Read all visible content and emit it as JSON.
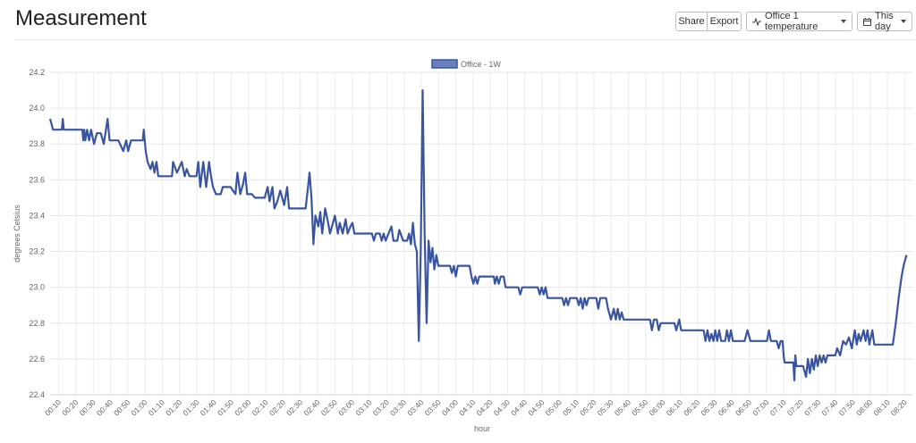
{
  "page": {
    "title": "Measurement"
  },
  "toolbar": {
    "share_label": "Share",
    "export_label": "Export",
    "measurement_label": "Office 1 temperature",
    "range_label": "This day",
    "measurement_icon": "activity-icon",
    "range_icon": "calendar-icon"
  },
  "chart_data": {
    "type": "line",
    "xlabel": "hour",
    "ylabel": "degrees Celsius",
    "ylim": [
      22.4,
      24.2
    ],
    "y_ticks": [
      "22.4",
      "22.6",
      "22.8",
      "23.0",
      "23.2",
      "23.4",
      "23.6",
      "23.8",
      "24.0",
      "24.2"
    ],
    "x_ticks": [
      "00:10",
      "00:20",
      "00:30",
      "00:40",
      "00:50",
      "01:00",
      "01:10",
      "01:20",
      "01:30",
      "01:40",
      "01:50",
      "02:00",
      "02:10",
      "02:20",
      "02:30",
      "02:40",
      "02:50",
      "03:00",
      "03:10",
      "03:20",
      "03:30",
      "03:40",
      "03:50",
      "04:00",
      "04:10",
      "04:20",
      "04:30",
      "04:40",
      "04:50",
      "05:00",
      "05:10",
      "05:20",
      "05:30",
      "05:40",
      "05:50",
      "06:00",
      "06:10",
      "06:20",
      "06:30",
      "06:40",
      "06:50",
      "07:00",
      "07:10",
      "07:20",
      "07:30",
      "07:40",
      "07:50",
      "08:00",
      "08:10",
      "08:20"
    ],
    "grid": true,
    "legend": "top-center",
    "color": "#3a559f",
    "series": [
      {
        "name": "Office - 1W",
        "points": [
          [
            0,
            23.94
          ],
          [
            3,
            23.88
          ],
          [
            12,
            23.88
          ],
          [
            13,
            23.94
          ],
          [
            14,
            23.88
          ],
          [
            33,
            23.88
          ],
          [
            34,
            23.82
          ],
          [
            35,
            23.88
          ],
          [
            36,
            23.82
          ],
          [
            38,
            23.88
          ],
          [
            40,
            23.82
          ],
          [
            42,
            23.88
          ],
          [
            45,
            23.8
          ],
          [
            48,
            23.86
          ],
          [
            52,
            23.86
          ],
          [
            55,
            23.8
          ],
          [
            59,
            23.94
          ],
          [
            61,
            23.82
          ],
          [
            70,
            23.82
          ],
          [
            75,
            23.76
          ],
          [
            78,
            23.82
          ],
          [
            80,
            23.76
          ],
          [
            83,
            23.82
          ],
          [
            95,
            23.82
          ],
          [
            96,
            23.88
          ],
          [
            97,
            23.82
          ],
          [
            98,
            23.76
          ],
          [
            100,
            23.7
          ],
          [
            103,
            23.66
          ],
          [
            105,
            23.7
          ],
          [
            107,
            23.64
          ],
          [
            109,
            23.7
          ],
          [
            111,
            23.62
          ],
          [
            125,
            23.62
          ],
          [
            126,
            23.7
          ],
          [
            130,
            23.64
          ],
          [
            135,
            23.7
          ],
          [
            138,
            23.62
          ],
          [
            140,
            23.66
          ],
          [
            143,
            23.62
          ],
          [
            150,
            23.62
          ],
          [
            152,
            23.7
          ],
          [
            154,
            23.56
          ],
          [
            157,
            23.7
          ],
          [
            160,
            23.56
          ],
          [
            163,
            23.7
          ],
          [
            165,
            23.62
          ],
          [
            167,
            23.56
          ],
          [
            170,
            23.52
          ],
          [
            175,
            23.52
          ],
          [
            177,
            23.56
          ],
          [
            185,
            23.56
          ],
          [
            190,
            23.52
          ],
          [
            192,
            23.64
          ],
          [
            195,
            23.52
          ],
          [
            198,
            23.58
          ],
          [
            200,
            23.64
          ],
          [
            202,
            23.52
          ],
          [
            207,
            23.52
          ],
          [
            210,
            23.5
          ],
          [
            220,
            23.5
          ],
          [
            223,
            23.56
          ],
          [
            225,
            23.48
          ],
          [
            228,
            23.56
          ],
          [
            230,
            23.44
          ],
          [
            233,
            23.48
          ],
          [
            236,
            23.54
          ],
          [
            240,
            23.46
          ],
          [
            243,
            23.56
          ],
          [
            245,
            23.44
          ],
          [
            250,
            23.44
          ],
          [
            255,
            23.44
          ],
          [
            262,
            23.44
          ],
          [
            264,
            23.54
          ],
          [
            266,
            23.64
          ],
          [
            268,
            23.5
          ],
          [
            270,
            23.24
          ],
          [
            272,
            23.4
          ],
          [
            275,
            23.34
          ],
          [
            277,
            23.42
          ],
          [
            279,
            23.3
          ],
          [
            282,
            23.44
          ],
          [
            285,
            23.36
          ],
          [
            287,
            23.3
          ],
          [
            290,
            23.36
          ],
          [
            292,
            23.4
          ],
          [
            295,
            23.3
          ],
          [
            297,
            23.36
          ],
          [
            300,
            23.3
          ],
          [
            303,
            23.38
          ],
          [
            305,
            23.3
          ],
          [
            308,
            23.34
          ],
          [
            310,
            23.36
          ],
          [
            312,
            23.3
          ],
          [
            330,
            23.3
          ],
          [
            332,
            23.26
          ],
          [
            334,
            23.3
          ],
          [
            338,
            23.3
          ],
          [
            340,
            23.26
          ],
          [
            342,
            23.3
          ],
          [
            344,
            23.26
          ],
          [
            350,
            23.34
          ],
          [
            352,
            23.26
          ],
          [
            356,
            23.26
          ],
          [
            358,
            23.32
          ],
          [
            362,
            23.26
          ],
          [
            366,
            23.26
          ],
          [
            368,
            23.3
          ],
          [
            370,
            23.24
          ],
          [
            372,
            23.36
          ],
          [
            374,
            23.24
          ],
          [
            376,
            23.2
          ],
          [
            378,
            22.7
          ],
          [
            380,
            23.22
          ],
          [
            382,
            24.1
          ],
          [
            384,
            23.3
          ],
          [
            386,
            22.8
          ],
          [
            388,
            23.26
          ],
          [
            390,
            23.14
          ],
          [
            392,
            23.22
          ],
          [
            394,
            23.1
          ],
          [
            396,
            23.18
          ],
          [
            398,
            23.12
          ],
          [
            410,
            23.12
          ],
          [
            412,
            23.08
          ],
          [
            414,
            23.12
          ],
          [
            416,
            23.06
          ],
          [
            418,
            23.12
          ],
          [
            430,
            23.12
          ],
          [
            432,
            23.06
          ],
          [
            434,
            23.02
          ],
          [
            436,
            23.06
          ],
          [
            438,
            23.02
          ],
          [
            440,
            23.06
          ],
          [
            455,
            23.06
          ],
          [
            456,
            23.02
          ],
          [
            458,
            23.06
          ],
          [
            460,
            23.02
          ],
          [
            462,
            23.06
          ],
          [
            465,
            23.06
          ],
          [
            467,
            23.0
          ],
          [
            480,
            23.0
          ],
          [
            482,
            22.96
          ],
          [
            484,
            23.0
          ],
          [
            500,
            23.0
          ],
          [
            502,
            22.96
          ],
          [
            504,
            23.0
          ],
          [
            506,
            22.96
          ],
          [
            508,
            23.0
          ],
          [
            510,
            22.94
          ],
          [
            525,
            22.94
          ],
          [
            527,
            22.9
          ],
          [
            529,
            22.94
          ],
          [
            531,
            22.9
          ],
          [
            533,
            22.94
          ],
          [
            540,
            22.94
          ],
          [
            542,
            22.9
          ],
          [
            544,
            22.94
          ],
          [
            546,
            22.88
          ],
          [
            548,
            22.94
          ],
          [
            550,
            22.9
          ],
          [
            552,
            22.94
          ],
          [
            560,
            22.94
          ],
          [
            562,
            22.88
          ],
          [
            564,
            22.94
          ],
          [
            570,
            22.94
          ],
          [
            572,
            22.88
          ],
          [
            575,
            22.82
          ],
          [
            578,
            22.88
          ],
          [
            580,
            22.82
          ],
          [
            582,
            22.88
          ],
          [
            584,
            22.82
          ],
          [
            586,
            22.86
          ],
          [
            588,
            22.82
          ],
          [
            600,
            22.82
          ],
          [
            615,
            22.82
          ],
          [
            617,
            22.76
          ],
          [
            619,
            22.82
          ],
          [
            622,
            22.82
          ],
          [
            624,
            22.76
          ],
          [
            626,
            22.8
          ],
          [
            640,
            22.8
          ],
          [
            642,
            22.76
          ],
          [
            645,
            22.82
          ],
          [
            647,
            22.76
          ],
          [
            660,
            22.76
          ],
          [
            670,
            22.76
          ],
          [
            672,
            22.7
          ],
          [
            674,
            22.76
          ],
          [
            676,
            22.7
          ],
          [
            678,
            22.74
          ],
          [
            680,
            22.7
          ],
          [
            682,
            22.76
          ],
          [
            684,
            22.7
          ],
          [
            686,
            22.76
          ],
          [
            688,
            22.7
          ],
          [
            692,
            22.7
          ],
          [
            694,
            22.76
          ],
          [
            696,
            22.7
          ],
          [
            698,
            22.76
          ],
          [
            700,
            22.7
          ],
          [
            712,
            22.7
          ],
          [
            715,
            22.76
          ],
          [
            718,
            22.7
          ],
          [
            735,
            22.7
          ],
          [
            737,
            22.76
          ],
          [
            739,
            22.7
          ],
          [
            745,
            22.7
          ],
          [
            747,
            22.66
          ],
          [
            749,
            22.7
          ],
          [
            751,
            22.7
          ],
          [
            752,
            22.62
          ],
          [
            753,
            22.58
          ],
          [
            762,
            22.58
          ],
          [
            763,
            22.48
          ],
          [
            764,
            22.62
          ],
          [
            765,
            22.56
          ],
          [
            772,
            22.56
          ],
          [
            775,
            22.5
          ],
          [
            777,
            22.6
          ],
          [
            779,
            22.52
          ],
          [
            781,
            22.6
          ],
          [
            783,
            22.54
          ],
          [
            785,
            22.62
          ],
          [
            787,
            22.56
          ],
          [
            789,
            22.62
          ],
          [
            791,
            22.58
          ],
          [
            793,
            22.62
          ],
          [
            795,
            22.58
          ],
          [
            797,
            22.62
          ],
          [
            805,
            22.62
          ],
          [
            807,
            22.66
          ],
          [
            810,
            22.62
          ],
          [
            813,
            22.7
          ],
          [
            816,
            22.68
          ],
          [
            819,
            22.72
          ],
          [
            822,
            22.66
          ],
          [
            825,
            22.76
          ],
          [
            827,
            22.68
          ],
          [
            829,
            22.74
          ],
          [
            831,
            22.7
          ],
          [
            834,
            22.76
          ],
          [
            836,
            22.7
          ],
          [
            838,
            22.76
          ],
          [
            840,
            22.68
          ],
          [
            843,
            22.76
          ],
          [
            845,
            22.68
          ],
          [
            860,
            22.68
          ],
          [
            864,
            22.68
          ],
          [
            867,
            22.8
          ],
          [
            870,
            22.94
          ],
          [
            873,
            23.06
          ],
          [
            875,
            23.12
          ],
          [
            878,
            23.18
          ]
        ]
      }
    ]
  }
}
